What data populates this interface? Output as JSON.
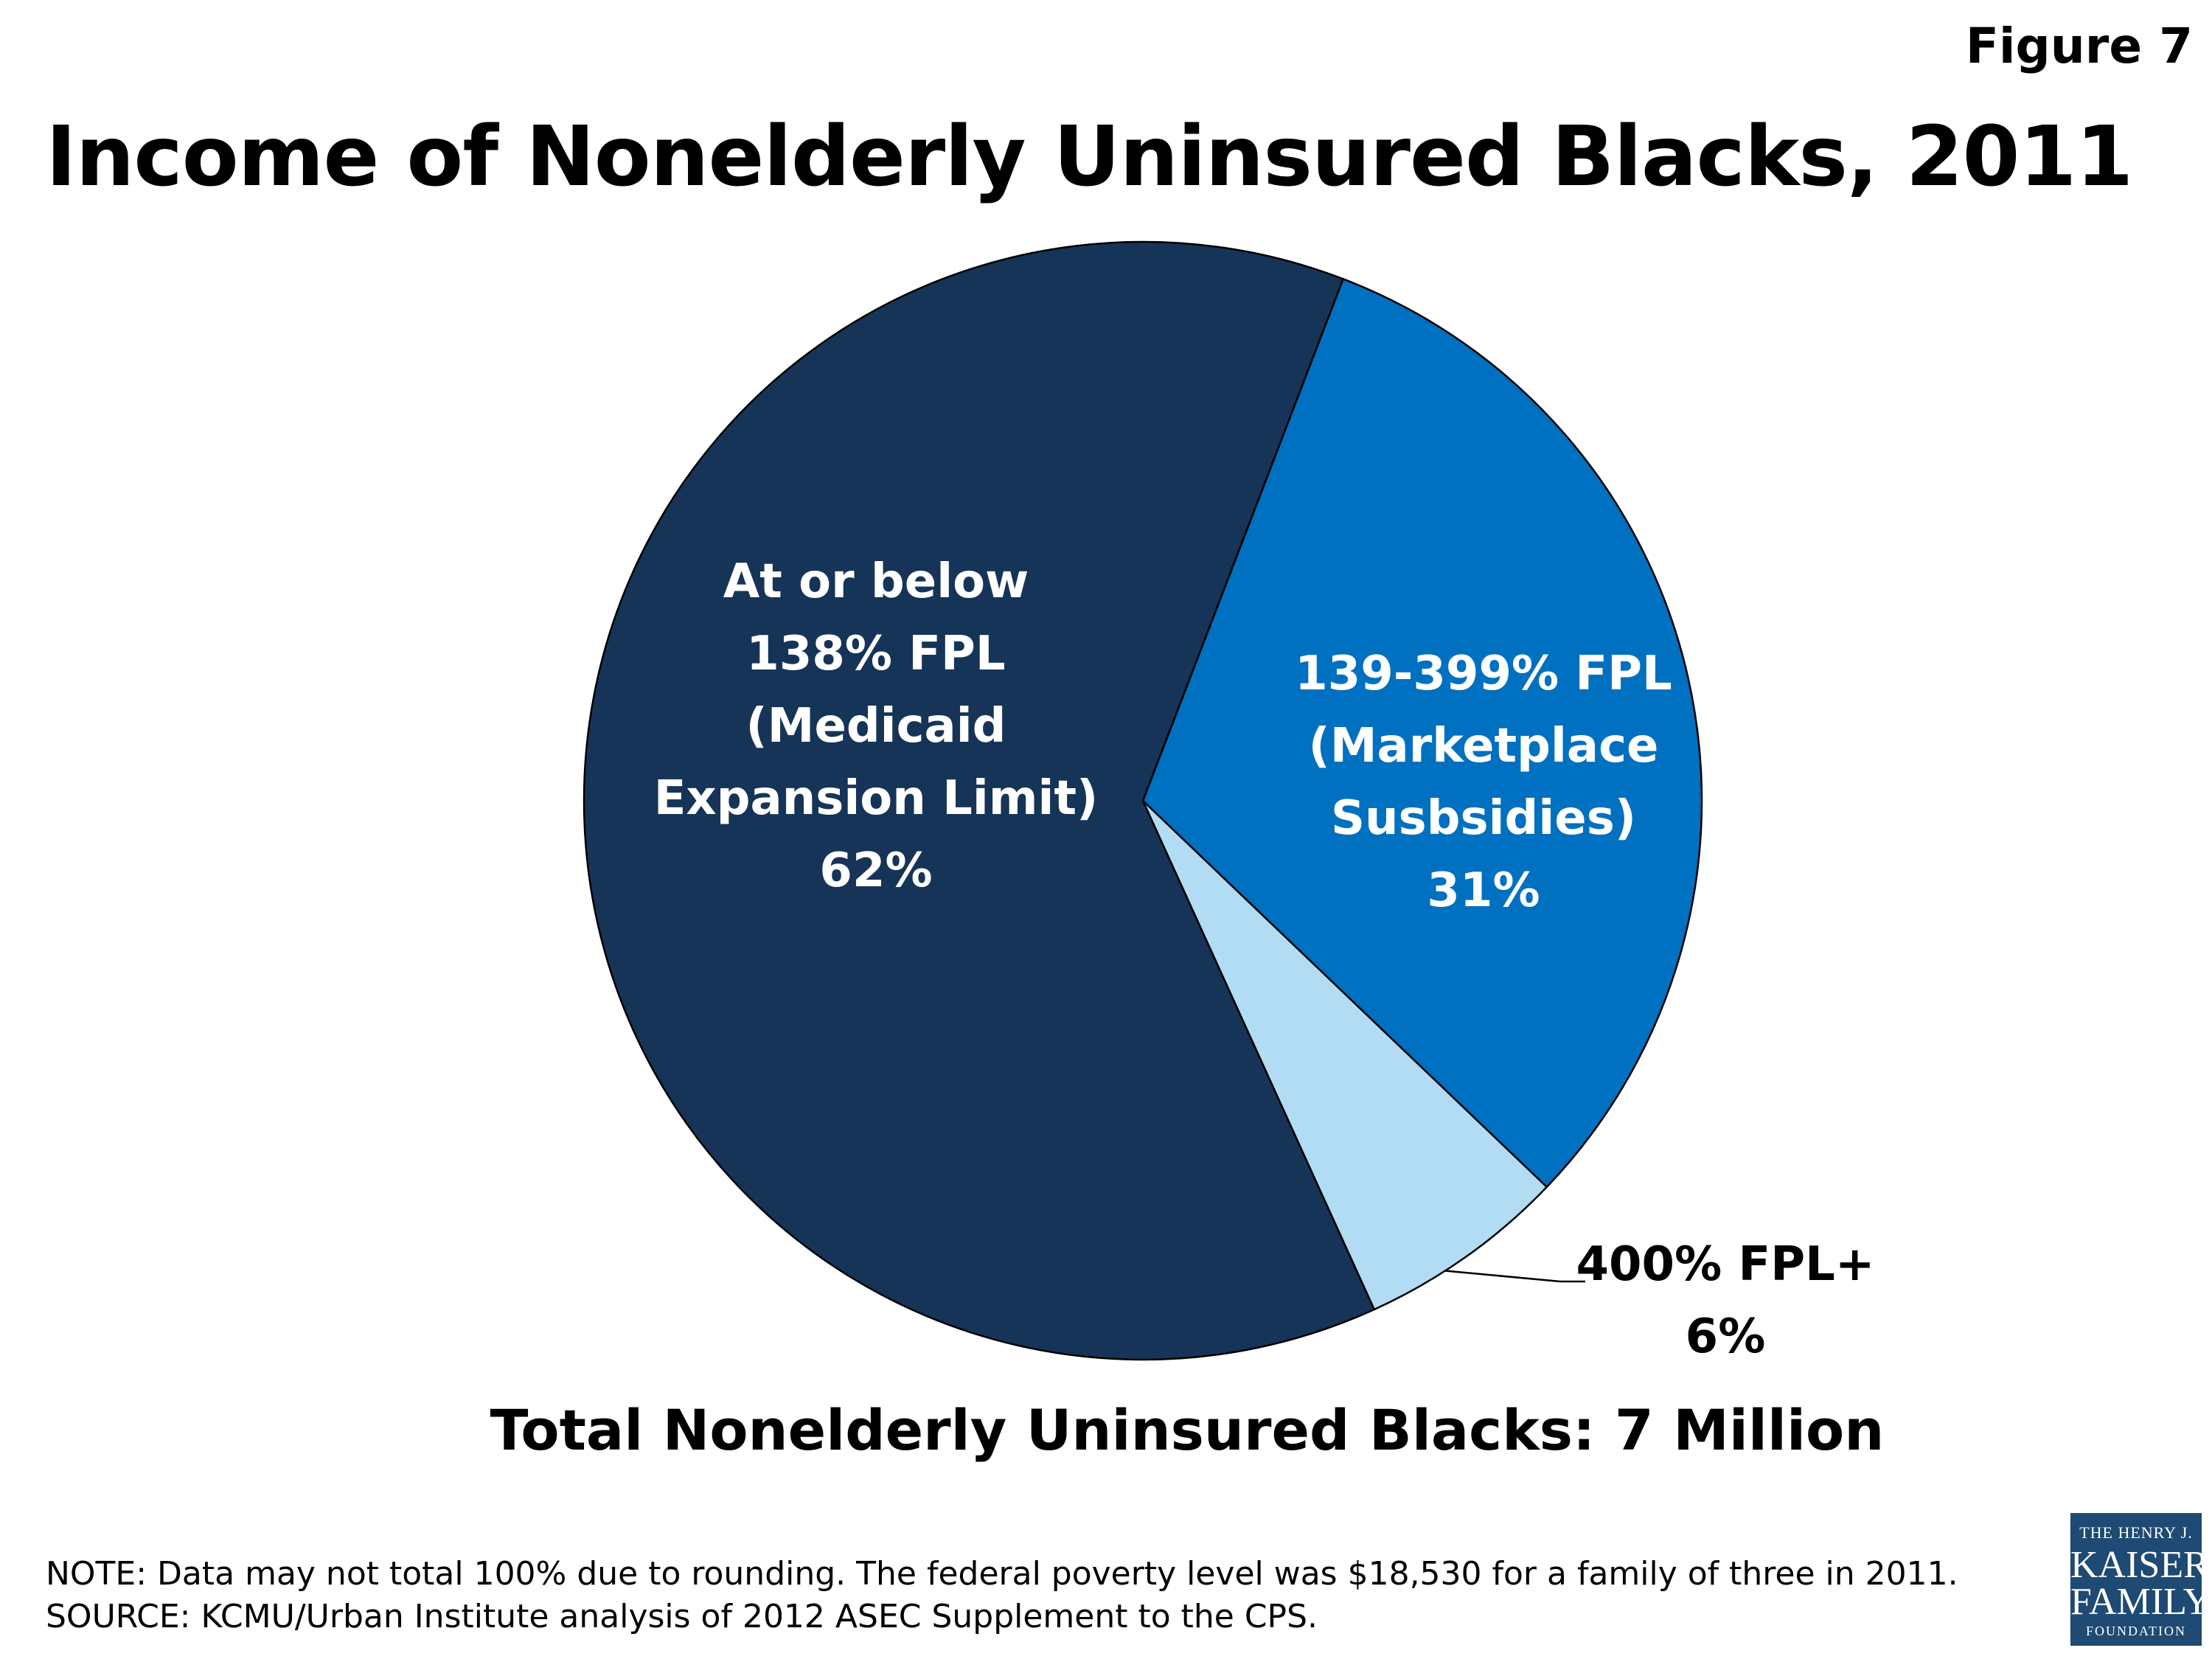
{
  "figure_label": "Figure 7",
  "title": "Income of Nonelderly Uninsured Blacks, 2011",
  "total_label": "Total Nonelderly Uninsured Blacks: 7 Million",
  "note": "NOTE:  Data may not total 100% due to rounding. The federal poverty level was $18,530 for a family of three  in 2011.",
  "source": "SOURCE: KCMU/Urban Institute analysis of 2012 ASEC Supplement to the CPS.",
  "logo": {
    "line1": "THE HENRY J.",
    "line2": "KAISER",
    "line3": "FAMILY",
    "line4": "FOUNDATION"
  },
  "chart_data": {
    "type": "pie",
    "title": "Income of Nonelderly Uninsured Blacks, 2011",
    "start_angle_deg": 21,
    "direction": "clockwise",
    "legend": "none",
    "slices": [
      {
        "label_lines": [
          "139-399% FPL",
          "(Marketplace",
          "Susbsidies)",
          "31%"
        ],
        "value": 31,
        "color": "#0070c0",
        "text_color": "#ffffff",
        "label_position": "inside"
      },
      {
        "label_lines": [
          "400% FPL+",
          "6%"
        ],
        "value": 6,
        "color": "#b1dcf4",
        "text_color": "#000000",
        "label_position": "outside-leader"
      },
      {
        "label_lines": [
          "At or below",
          "138% FPL",
          "(Medicaid",
          "Expansion Limit)",
          "62%"
        ],
        "value": 62,
        "color": "#163457",
        "text_color": "#ffffff",
        "label_position": "inside"
      }
    ]
  }
}
